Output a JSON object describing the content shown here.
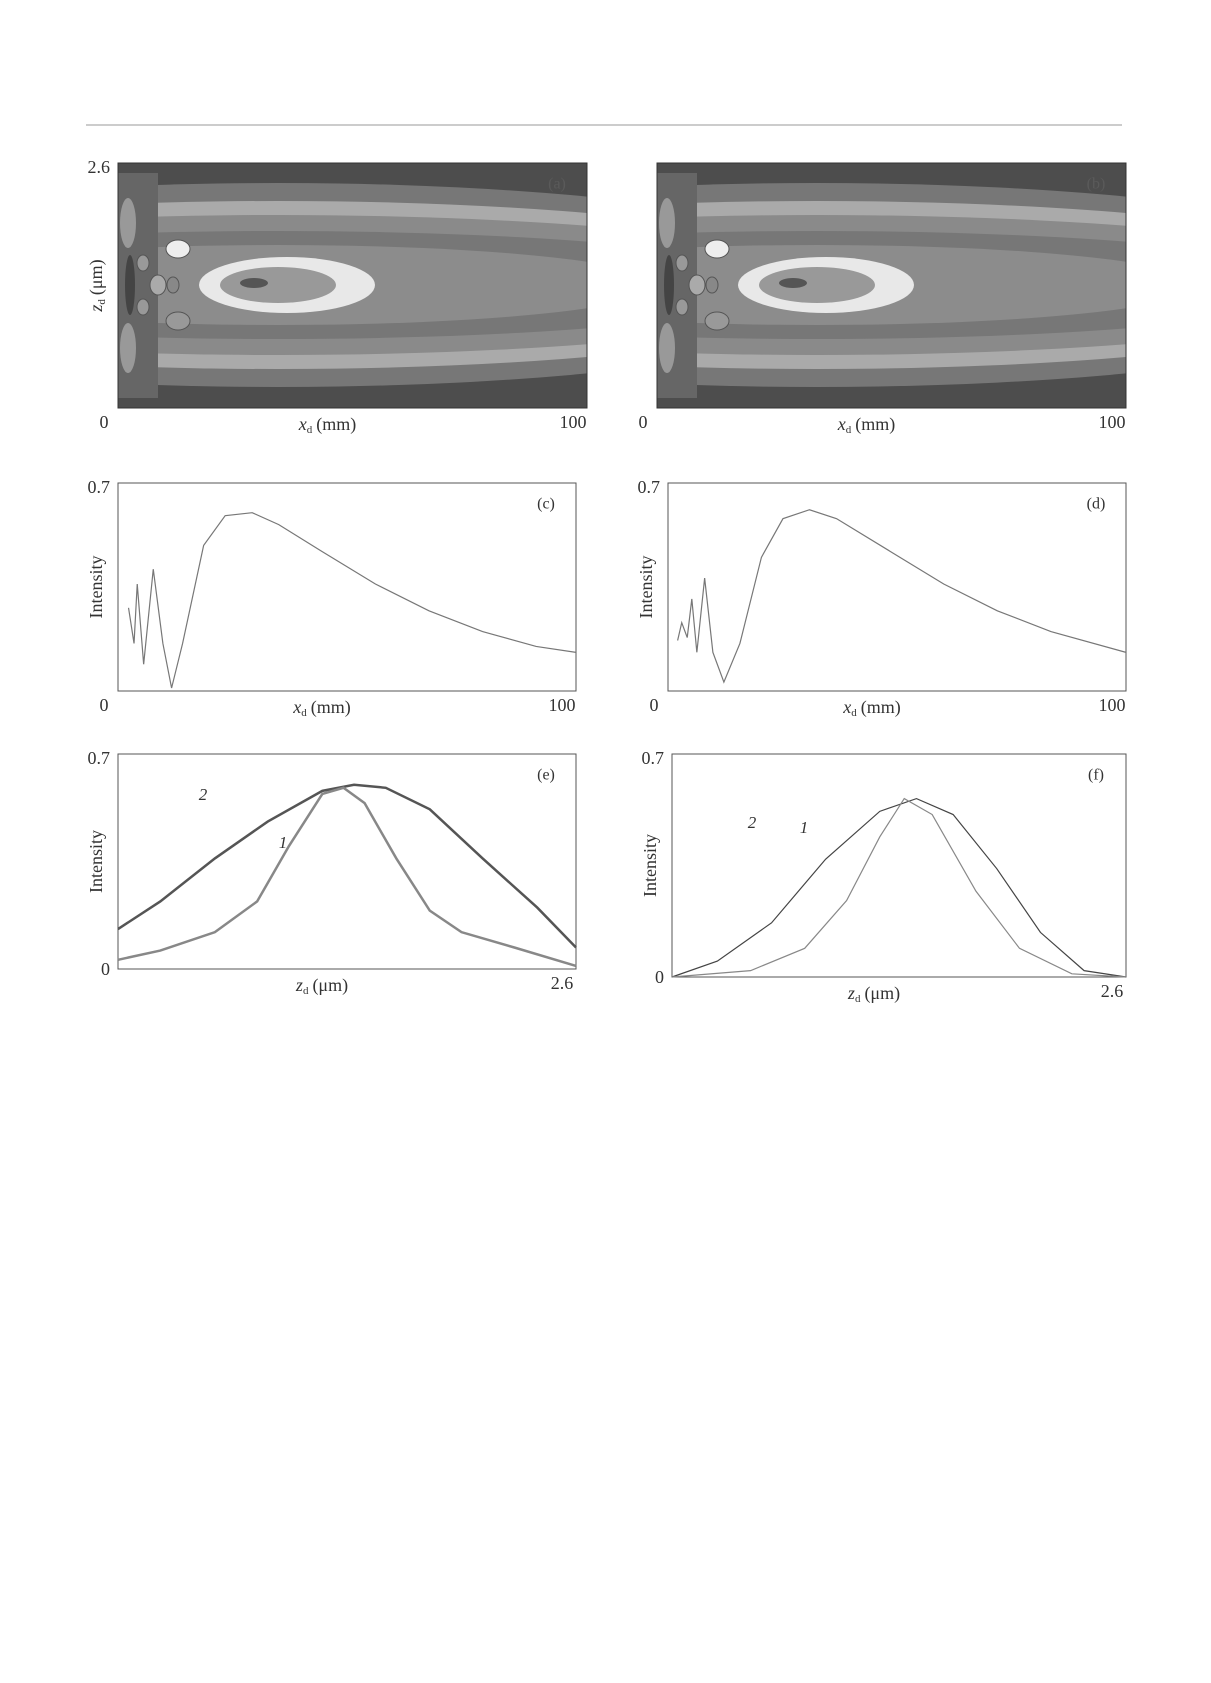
{
  "chart_data": [
    {
      "type": "contour",
      "panel_label": "(a)",
      "xlim": [
        0,
        100
      ],
      "xticks": [
        0,
        100
      ],
      "ylim": [
        0,
        2.6
      ],
      "yticks": [
        2.6
      ],
      "xlabel": {
        "var": "x",
        "sub": "d",
        "unit": "(mm)"
      },
      "ylabel": {
        "var": "z",
        "sub": "d",
        "unit": "(μm)"
      }
    },
    {
      "type": "contour",
      "panel_label": "(b)",
      "xlim": [
        0,
        100
      ],
      "xticks": [
        0,
        100
      ],
      "ylim": [
        0,
        2.6
      ],
      "yticks": [],
      "xlabel": {
        "var": "x",
        "sub": "d",
        "unit": "(mm)"
      }
    },
    {
      "type": "line",
      "panel_label": "(c)",
      "xlim": [
        0,
        100
      ],
      "xticks": [
        0,
        100
      ],
      "ylim": [
        0,
        0.7
      ],
      "yticks": [
        0.7
      ],
      "xlabel": {
        "var": "x",
        "sub": "d",
        "unit": "(mm)"
      },
      "ylabel": {
        "text": "Intensity"
      },
      "series": [
        {
          "color": "#777777",
          "x": [
            2.3,
            3.5,
            4.2,
            5.6,
            7.7,
            9.8,
            11.7,
            14.1,
            18.7,
            23.4,
            29.3,
            35.1,
            44.5,
            56.2,
            67.9,
            79.6,
            91.3,
            100
          ],
          "values": [
            0.28,
            0.16,
            0.36,
            0.09,
            0.41,
            0.16,
            0.01,
            0.16,
            0.49,
            0.59,
            0.6,
            0.56,
            0.47,
            0.36,
            0.27,
            0.2,
            0.15,
            0.13
          ]
        }
      ]
    },
    {
      "type": "line",
      "panel_label": "(d)",
      "xlim": [
        0,
        100
      ],
      "xticks": [
        0,
        100
      ],
      "ylim": [
        0,
        0.7
      ],
      "yticks": [
        0.7
      ],
      "xlabel": {
        "var": "x",
        "sub": "d",
        "unit": "(mm)"
      },
      "ylabel": {
        "text": "Intensity"
      },
      "series": [
        {
          "color": "#777777",
          "x": [
            2.1,
            3.0,
            4.2,
            5.2,
            6.3,
            8.0,
            9.8,
            12.2,
            15.7,
            20.4,
            25.1,
            30.9,
            36.8,
            48.5,
            60.2,
            71.9,
            83.6,
            100
          ],
          "values": [
            0.17,
            0.23,
            0.18,
            0.31,
            0.13,
            0.38,
            0.13,
            0.03,
            0.16,
            0.45,
            0.58,
            0.61,
            0.58,
            0.47,
            0.36,
            0.27,
            0.2,
            0.13
          ]
        }
      ]
    },
    {
      "type": "line",
      "panel_label": "(e)",
      "xlim": [
        0,
        2.6
      ],
      "xticks": [
        2.6
      ],
      "ylim": [
        0,
        0.7
      ],
      "yticks": [
        0,
        0.7
      ],
      "xlabel": {
        "var": "z",
        "sub": "d",
        "unit": "(μm)"
      },
      "ylabel": {
        "text": "Intensity"
      },
      "series": [
        {
          "name": "2",
          "color": "#555555",
          "width": 2.5,
          "x": [
            0,
            0.24,
            0.55,
            0.85,
            1.16,
            1.34,
            1.52,
            1.77,
            2.07,
            2.38,
            2.6
          ],
          "values": [
            0.13,
            0.22,
            0.36,
            0.48,
            0.58,
            0.6,
            0.59,
            0.52,
            0.36,
            0.2,
            0.07
          ]
        },
        {
          "name": "1",
          "color": "#888888",
          "width": 2.5,
          "x": [
            0,
            0.24,
            0.55,
            0.79,
            0.97,
            1.16,
            1.28,
            1.4,
            1.58,
            1.77,
            1.95,
            2.25,
            2.6
          ],
          "values": [
            0.03,
            0.06,
            0.12,
            0.22,
            0.4,
            0.57,
            0.59,
            0.54,
            0.36,
            0.19,
            0.12,
            0.07,
            0.01
          ]
        }
      ]
    },
    {
      "type": "line",
      "panel_label": "(f)",
      "xlim": [
        0,
        2.6
      ],
      "xticks": [
        2.6
      ],
      "ylim": [
        0,
        0.7
      ],
      "yticks": [
        0,
        0.7
      ],
      "xlabel": {
        "var": "z",
        "sub": "d",
        "unit": "(μm)"
      },
      "ylabel": {
        "text": "Intensity"
      },
      "series": [
        {
          "name": "2",
          "color": "#444444",
          "width": 1.2,
          "x": [
            0,
            0.26,
            0.57,
            0.88,
            1.19,
            1.4,
            1.61,
            1.86,
            2.11,
            2.36,
            2.6
          ],
          "values": [
            0,
            0.05,
            0.17,
            0.37,
            0.52,
            0.56,
            0.51,
            0.34,
            0.14,
            0.02,
            0
          ]
        },
        {
          "name": "1",
          "color": "#888888",
          "width": 1.2,
          "x": [
            0,
            0.45,
            0.76,
            1.0,
            1.19,
            1.33,
            1.49,
            1.74,
            1.99,
            2.29,
            2.6
          ],
          "values": [
            0,
            0.02,
            0.09,
            0.24,
            0.44,
            0.56,
            0.51,
            0.27,
            0.09,
            0.01,
            0
          ]
        }
      ]
    }
  ]
}
